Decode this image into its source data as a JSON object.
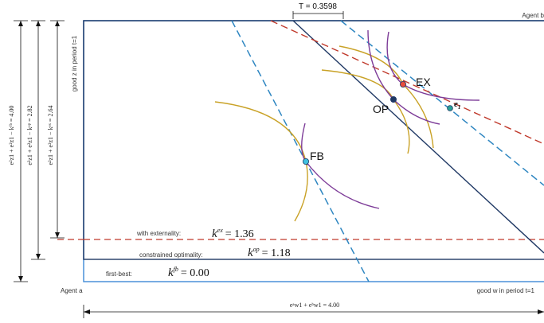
{
  "tax_label": "T = 0.3598",
  "agent_b": "Agent b",
  "agent_a": "Agent a",
  "x_axis_label": "good w in period t=1",
  "y_axis_label": "good z in period t=1",
  "points": {
    "ex": "EX",
    "op": "OP",
    "fb": "FB",
    "endowment": "e",
    "endowment_sub": "1"
  },
  "regimes": [
    {
      "label": "with externality:",
      "k_sup": "ex",
      "value": "= 1.36"
    },
    {
      "label": "constrained optimality:",
      "k_sup": "op",
      "value": "= 1.18"
    },
    {
      "label": "first-best:",
      "k_sup": "fb",
      "value": "= 0.00"
    }
  ],
  "vertical_measures": [
    "e²z1 + e²z1 − kᶠᵇ = 4.00",
    "e²z1 + e²z1 − kᵒᵖ = 2.82",
    "e²z1 + e²z1 − kᵉˣ = 2.64"
  ],
  "width_measure": "eᵃw1 + eᵇw1 = 4.00",
  "colors": {
    "frame": "#1f3864",
    "blue_dashed": "#2e86c1",
    "red_dashed": "#c0392b",
    "gold": "#c9a227",
    "purple": "#7d3c98",
    "op_dot": "#1f3864",
    "ex_dot": "#e74c3c",
    "fb_dot": "#3fc1e0",
    "e_dot": "#2aa198"
  }
}
